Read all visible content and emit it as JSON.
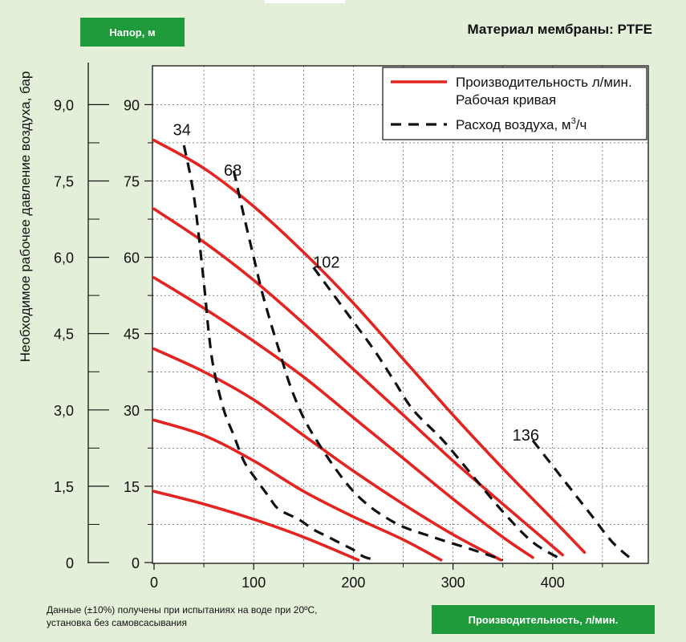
{
  "header": {
    "head_badge": "Напор, м",
    "material": "Материал мембраны: PTFE"
  },
  "footer": {
    "x_badge": "Производительность, л/мин.",
    "note_line1": "Данные (±10%) получены при испытаниях на воде при 20ºС,",
    "note_line2": "установка без самовсасывания"
  },
  "colors": {
    "background": "#e4efd9",
    "badge": "#1f9b3c",
    "curve": "#e52421",
    "air": "#111111"
  },
  "chart_data": {
    "type": "line",
    "title": "",
    "xlabel": "Производительность, л/мин.",
    "ylabel": "Напор, м",
    "y2label": "Необходимое рабочее давление воздуха, бар",
    "xlim": [
      0,
      480
    ],
    "ylim": [
      0,
      98
    ],
    "x_ticks": [
      {
        "value": 0,
        "label": "0"
      },
      {
        "value": 100,
        "label": "100"
      },
      {
        "value": 200,
        "label": "200"
      },
      {
        "value": 300,
        "label": "300"
      },
      {
        "value": 400,
        "label": "400"
      }
    ],
    "y_ticks": [
      {
        "value": 0,
        "label": "0"
      },
      {
        "value": 15,
        "label": "15"
      },
      {
        "value": 30,
        "label": "30"
      },
      {
        "value": 45,
        "label": "45"
      },
      {
        "value": 60,
        "label": "60"
      },
      {
        "value": 75,
        "label": "75"
      },
      {
        "value": 90,
        "label": "90"
      }
    ],
    "y2_ticks": [
      {
        "value": 0,
        "label": "0"
      },
      {
        "value": 15,
        "label": "1,5"
      },
      {
        "value": 30,
        "label": "3,0"
      },
      {
        "value": 45,
        "label": "4,5"
      },
      {
        "value": 60,
        "label": "6,0"
      },
      {
        "value": 75,
        "label": "7,5"
      },
      {
        "value": 90,
        "label": "9,0"
      }
    ],
    "grid": true,
    "legend": {
      "placement": "top-right",
      "entries": [
        {
          "label": "Производительность л/мин.",
          "label2": "Рабочая кривая",
          "style": "solid"
        },
        {
          "label": "Расход воздуха, м",
          "sup": "3",
          "suffix": "/ч",
          "style": "dashed"
        }
      ]
    },
    "performance_curves": [
      {
        "points": [
          [
            0,
            14
          ],
          [
            50,
            11.5
          ],
          [
            100,
            8.5
          ],
          [
            150,
            5
          ],
          [
            205,
            0.5
          ]
        ]
      },
      {
        "points": [
          [
            0,
            28
          ],
          [
            50,
            25
          ],
          [
            100,
            20
          ],
          [
            150,
            14
          ],
          [
            200,
            9
          ],
          [
            250,
            4.5
          ],
          [
            288,
            0.5
          ]
        ]
      },
      {
        "points": [
          [
            0,
            42
          ],
          [
            50,
            37.5
          ],
          [
            100,
            32
          ],
          [
            150,
            25
          ],
          [
            200,
            18
          ],
          [
            250,
            11.5
          ],
          [
            300,
            5.5
          ],
          [
            348,
            0.5
          ]
        ]
      },
      {
        "points": [
          [
            0,
            56
          ],
          [
            50,
            50
          ],
          [
            100,
            43.5
          ],
          [
            150,
            36.5
          ],
          [
            200,
            28.5
          ],
          [
            250,
            20.5
          ],
          [
            300,
            12.5
          ],
          [
            350,
            5
          ],
          [
            380,
            1
          ]
        ]
      },
      {
        "points": [
          [
            0,
            69.5
          ],
          [
            50,
            63
          ],
          [
            100,
            55.5
          ],
          [
            150,
            47
          ],
          [
            200,
            38
          ],
          [
            250,
            29
          ],
          [
            300,
            20
          ],
          [
            350,
            11.5
          ],
          [
            410,
            1.5
          ]
        ]
      },
      {
        "points": [
          [
            0,
            83
          ],
          [
            50,
            77.5
          ],
          [
            100,
            70
          ],
          [
            150,
            61
          ],
          [
            200,
            51
          ],
          [
            250,
            40
          ],
          [
            300,
            29
          ],
          [
            350,
            18.5
          ],
          [
            400,
            8.5
          ],
          [
            432,
            2
          ]
        ]
      }
    ],
    "air_curves": [
      {
        "label": "34",
        "label_at": [
          28,
          84
        ],
        "points": [
          [
            30,
            82
          ],
          [
            40,
            72
          ],
          [
            50,
            55
          ],
          [
            55,
            45
          ],
          [
            60,
            38
          ],
          [
            70,
            30
          ],
          [
            80,
            25
          ],
          [
            90,
            20
          ],
          [
            100,
            17
          ],
          [
            115,
            13
          ],
          [
            125,
            10.5
          ],
          [
            145,
            8.5
          ],
          [
            160,
            6.5
          ],
          [
            175,
            5
          ],
          [
            190,
            3.5
          ],
          [
            200,
            2.5
          ],
          [
            210,
            1.2
          ],
          [
            222,
            0.5
          ]
        ]
      },
      {
        "label": "68",
        "label_at": [
          79,
          76
        ],
        "points": [
          [
            80,
            77
          ],
          [
            88,
            70
          ],
          [
            100,
            60
          ],
          [
            110,
            52
          ],
          [
            125,
            42
          ],
          [
            140,
            33
          ],
          [
            160,
            25
          ],
          [
            200,
            14
          ],
          [
            240,
            8
          ],
          [
            280,
            5
          ],
          [
            320,
            2.5
          ],
          [
            350,
            0.5
          ]
        ]
      },
      {
        "label": "102",
        "label_at": [
          173,
          58
        ],
        "points": [
          [
            160,
            58
          ],
          [
            190,
            50
          ],
          [
            220,
            42
          ],
          [
            240,
            36
          ],
          [
            260,
            30
          ],
          [
            290,
            24
          ],
          [
            320,
            17
          ],
          [
            350,
            10
          ],
          [
            380,
            4
          ],
          [
            410,
            0.5
          ]
        ]
      },
      {
        "label": "136",
        "label_at": [
          373,
          24
        ],
        "points": [
          [
            380,
            24
          ],
          [
            400,
            19
          ],
          [
            420,
            14
          ],
          [
            440,
            9
          ],
          [
            460,
            4
          ],
          [
            480,
            0.5
          ]
        ]
      }
    ]
  }
}
